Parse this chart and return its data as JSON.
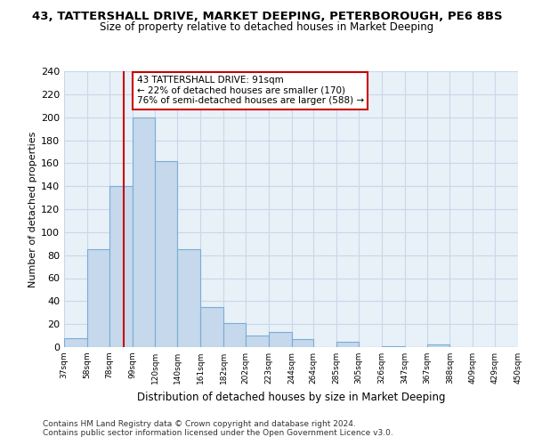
{
  "title": "43, TATTERSHALL DRIVE, MARKET DEEPING, PETERBOROUGH, PE6 8BS",
  "subtitle": "Size of property relative to detached houses in Market Deeping",
  "xlabel": "Distribution of detached houses by size in Market Deeping",
  "ylabel": "Number of detached properties",
  "bar_heights": [
    8,
    85,
    140,
    200,
    162,
    85,
    35,
    21,
    10,
    13,
    7,
    0,
    5,
    0,
    1,
    0,
    2,
    0,
    0,
    0
  ],
  "bin_edges": [
    37,
    58,
    78,
    99,
    120,
    140,
    161,
    182,
    202,
    223,
    244,
    264,
    285,
    305,
    326,
    347,
    367,
    388,
    409,
    429,
    450
  ],
  "tick_labels": [
    "37sqm",
    "58sqm",
    "78sqm",
    "99sqm",
    "120sqm",
    "140sqm",
    "161sqm",
    "182sqm",
    "202sqm",
    "223sqm",
    "244sqm",
    "264sqm",
    "285sqm",
    "305sqm",
    "326sqm",
    "347sqm",
    "367sqm",
    "388sqm",
    "409sqm",
    "429sqm",
    "450sqm"
  ],
  "bar_color": "#c5d8ec",
  "bar_edge_color": "#7aadd4",
  "vline_x": 91,
  "vline_color": "#cc0000",
  "annotation_line1": "43 TATTERSHALL DRIVE: 91sqm",
  "annotation_line2": "← 22% of detached houses are smaller (170)",
  "annotation_line3": "76% of semi-detached houses are larger (588) →",
  "annotation_box_color": "white",
  "annotation_box_edge": "#cc0000",
  "ylim": [
    0,
    240
  ],
  "yticks": [
    0,
    20,
    40,
    60,
    80,
    100,
    120,
    140,
    160,
    180,
    200,
    220,
    240
  ],
  "grid_color": "#c8d8e8",
  "bg_color": "#ffffff",
  "plot_bg_color": "#e8f0f8",
  "footer1": "Contains HM Land Registry data © Crown copyright and database right 2024.",
  "footer2": "Contains public sector information licensed under the Open Government Licence v3.0."
}
